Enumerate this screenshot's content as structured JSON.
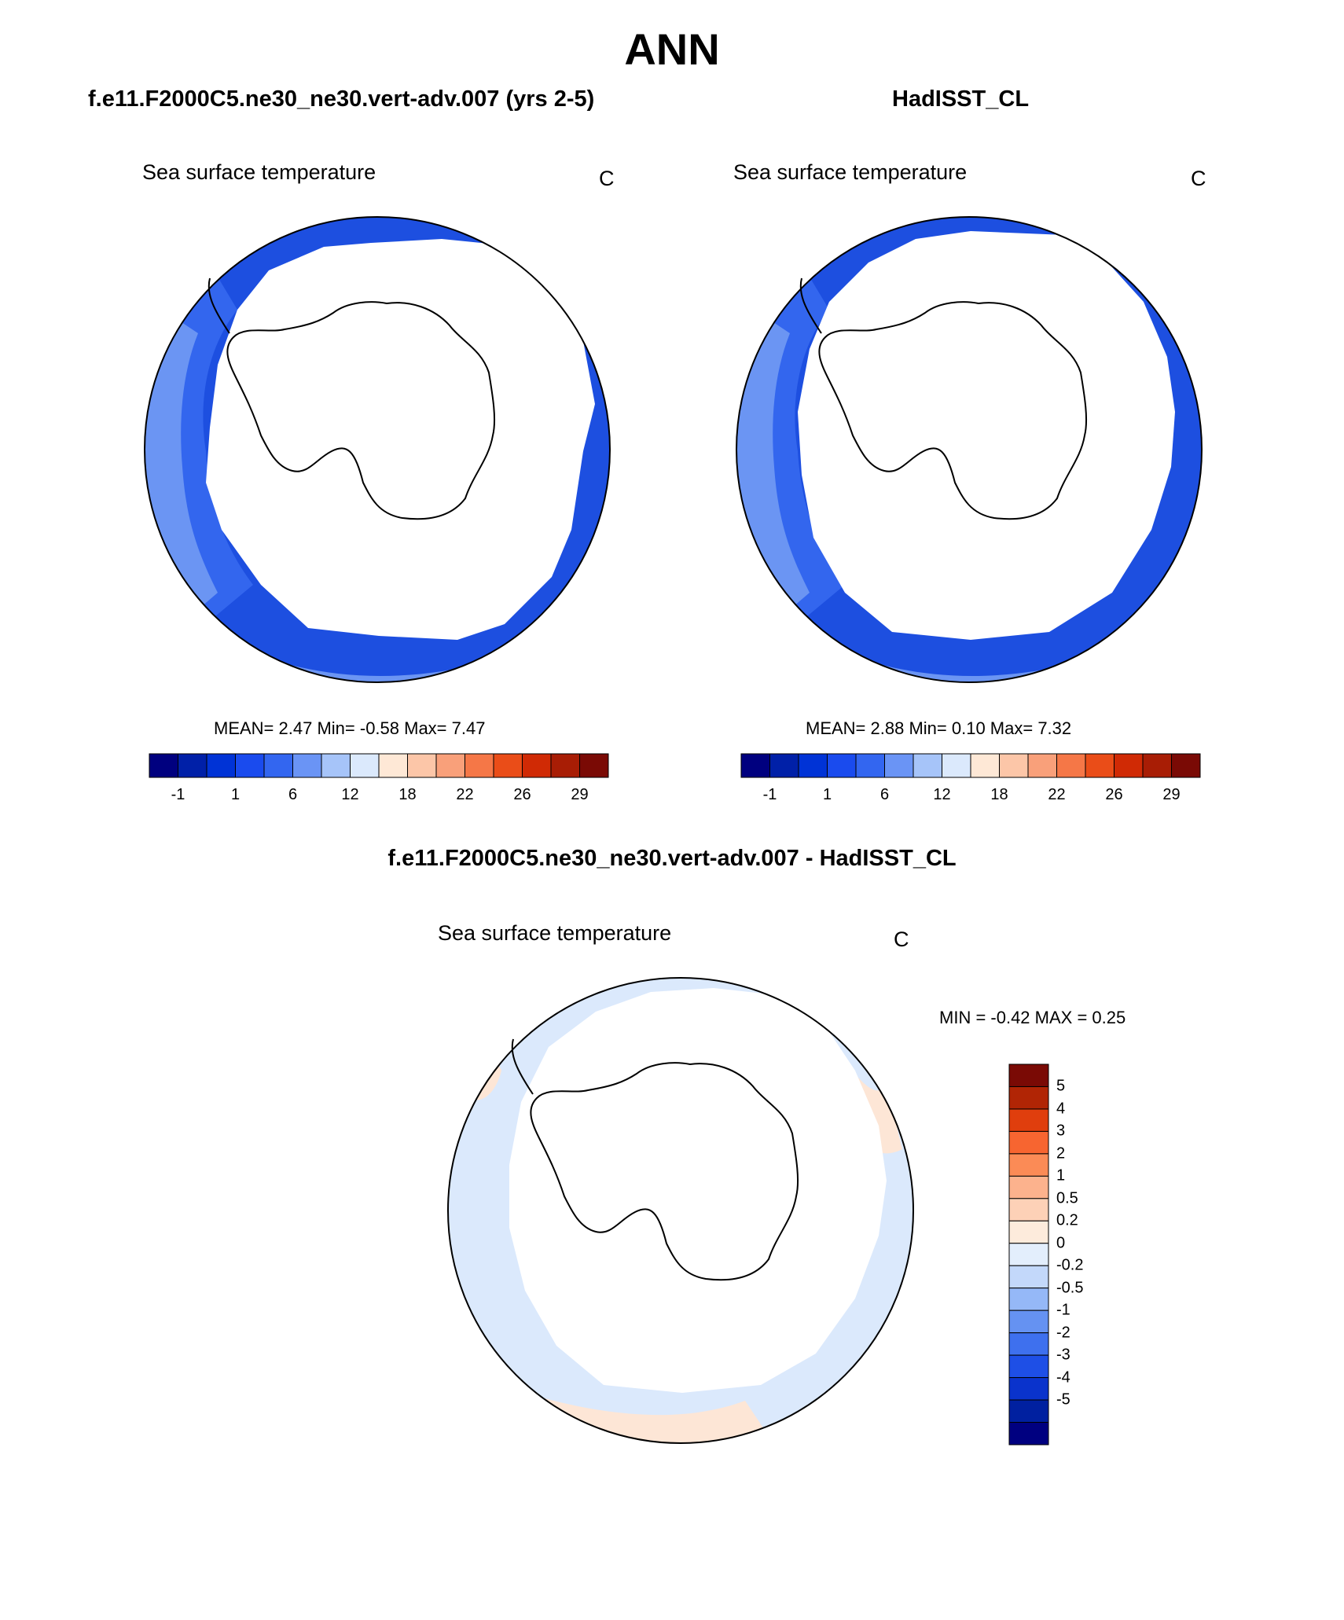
{
  "title": "ANN",
  "panels": [
    {
      "id": "model",
      "heading": "f.e11.F2000C5.ne30_ne30.vert-adv.007 (yrs 2-5)",
      "variable": "Sea surface temperature",
      "units": "C",
      "stats": "MEAN=  2.47  Min=  -0.58  Max=  7.47",
      "mean": 2.47,
      "min": -0.58,
      "max": 7.47
    },
    {
      "id": "obs",
      "heading": "HadISST_CL",
      "variable": "Sea surface temperature",
      "units": "C",
      "stats": "MEAN=  2.88  Min=   0.10  Max=  7.32",
      "mean": 2.88,
      "min": 0.1,
      "max": 7.32
    },
    {
      "id": "diff",
      "heading": "f.e11.F2000C5.ne30_ne30.vert-adv.007 - HadISST_CL",
      "variable": "Sea surface temperature",
      "units": "C",
      "stats": "MIN =  -0.42 MAX =   0.25",
      "min": -0.42,
      "max": 0.25
    }
  ],
  "sst_colorbar": {
    "colors": [
      "#00007f",
      "#0020a8",
      "#0033d6",
      "#1a4bee",
      "#3366f0",
      "#6a94f5",
      "#a6c4f9",
      "#dbe9fc",
      "#fee8d6",
      "#fcc6a8",
      "#f9a07a",
      "#f57747",
      "#ea4d18",
      "#d02a05",
      "#a81d05",
      "#7a0a05"
    ],
    "tick_labels": [
      "-1",
      "1",
      "6",
      "12",
      "18",
      "22",
      "26",
      "29"
    ]
  },
  "diff_colorbar": {
    "colors": [
      "#7a0a05",
      "#b12505",
      "#e03e0d",
      "#f76530",
      "#fb8b56",
      "#fcb28d",
      "#fdd1b7",
      "#fdebdc",
      "#e3eefc",
      "#c3d8fa",
      "#95b8f7",
      "#6592f2",
      "#3e70ee",
      "#1e4fe6",
      "#0a33cc",
      "#0020a0",
      "#000080"
    ],
    "tick_labels": [
      "5",
      "4",
      "3",
      "2",
      "1",
      "0.5",
      "0.2",
      "0",
      "-0.2",
      "-0.5",
      "-1",
      "-2",
      "-3",
      "-4",
      "-5"
    ]
  },
  "colors": {
    "ocean_deep": "#1d4fe0",
    "ocean_mid": "#3366ee",
    "ocean_light": "#6b95f3",
    "ocean_pale": "#8fb1f6",
    "diff_blue": "#dbe9fc",
    "diff_orange": "#fde6d6"
  }
}
